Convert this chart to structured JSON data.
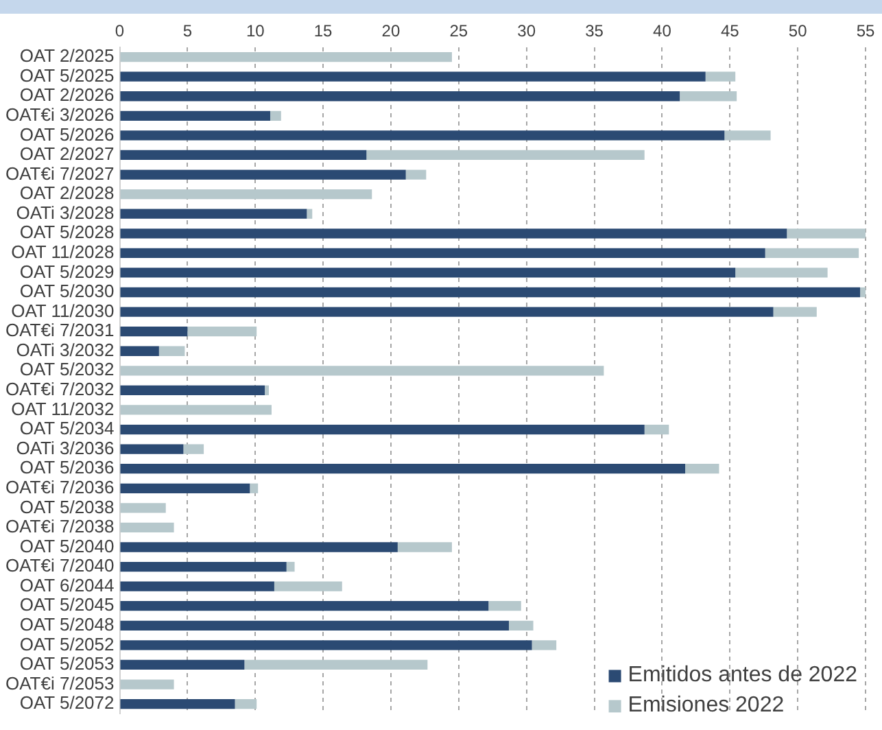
{
  "chart_data": {
    "type": "bar",
    "orientation": "horizontal",
    "stacked": true,
    "categories": [
      "OAT 2/2025",
      "OAT 5/2025",
      "OAT 2/2026",
      "OAT€i 3/2026",
      "OAT 5/2026",
      "OAT 2/2027",
      "OAT€i 7/2027",
      "OAT 2/2028",
      "OATi 3/2028",
      "OAT 5/2028",
      "OAT 11/2028",
      "OAT 5/2029",
      "OAT 5/2030",
      "OAT 11/2030",
      "OAT€i 7/2031",
      "OATi 3/2032",
      "OAT 5/2032",
      "OAT€i 7/2032",
      "OAT 11/2032",
      "OAT 5/2034",
      "OATi 3/2036",
      "OAT 5/2036",
      "OAT€i 7/2036",
      "OAT 5/2038",
      "OAT€i 7/2038",
      "OAT 5/2040",
      "OAT€i 7/2040",
      "OAT 6/2044",
      "OAT 5/2045",
      "OAT 5/2048",
      "OAT 5/2052",
      "OAT 5/2053",
      "OAT€i 7/2053",
      "OAT 5/2072"
    ],
    "series": [
      {
        "name": "Emitidos antes de 2022",
        "color": "#2b4a73",
        "values": [
          0,
          43.2,
          41.3,
          11.1,
          44.6,
          18.2,
          21.1,
          0,
          13.8,
          49.2,
          47.6,
          45.4,
          54.6,
          48.2,
          5.0,
          2.9,
          0,
          10.7,
          0,
          38.7,
          4.7,
          41.7,
          9.6,
          0,
          0,
          20.5,
          12.3,
          11.4,
          27.2,
          28.7,
          30.4,
          9.2,
          0,
          8.5
        ]
      },
      {
        "name": "Emisiones 2022",
        "color": "#b6c8cc",
        "values": [
          24.5,
          2.2,
          4.2,
          0.8,
          3.4,
          20.5,
          1.5,
          18.6,
          0.4,
          5.8,
          6.9,
          6.8,
          0.4,
          3.2,
          5.1,
          1.9,
          35.7,
          0.3,
          11.2,
          1.8,
          1.5,
          2.5,
          0.6,
          3.4,
          4.0,
          4.0,
          0.6,
          5.0,
          2.4,
          1.8,
          1.8,
          13.5,
          4.0,
          1.6
        ]
      }
    ],
    "xlim": [
      0,
      55
    ],
    "xticks": [
      0,
      5,
      10,
      15,
      20,
      25,
      30,
      35,
      40,
      45,
      50,
      55
    ],
    "grid": "x",
    "legend": "bottom right"
  }
}
